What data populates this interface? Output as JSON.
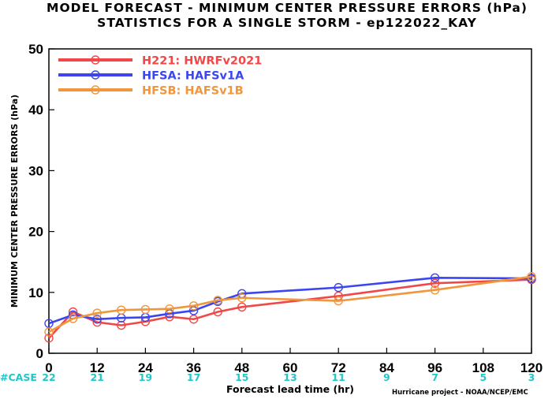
{
  "title_line1": "MODEL FORECAST - MINIMUM CENTER PRESSURE ERRORS (hPa)",
  "title_line2": "STATISTICS FOR A SINGLE STORM - ep122022_KAY",
  "credit": "Hurricane project - NOAA/NCEP/EMC",
  "case_label": "#CASE",
  "case_color": "#1ec8c8",
  "chart_data": {
    "type": "line",
    "title": "MODEL FORECAST - MINIMUM CENTER PRESSURE ERRORS (hPa)",
    "subtitle": "STATISTICS FOR A SINGLE STORM - ep122022_KAY",
    "xlabel": "Forecast lead time (hr)",
    "ylabel": "MINIMUM CENTER PRESSURE ERRORS (hPa)",
    "xlim": [
      0,
      120
    ],
    "ylim": [
      0,
      50
    ],
    "x_ticks": [
      0,
      12,
      24,
      36,
      48,
      60,
      72,
      84,
      96,
      108,
      120
    ],
    "y_ticks": [
      0,
      10,
      20,
      30,
      40,
      50
    ],
    "cases": [
      22,
      21,
      19,
      17,
      15,
      13,
      11,
      9,
      7,
      5,
      3
    ],
    "legend_position": "top-left",
    "grid": false,
    "series": [
      {
        "name": "H221: HWRFv2021",
        "color": "#f04848",
        "x": [
          0,
          6,
          12,
          18,
          24,
          30,
          36,
          42,
          48,
          72,
          96,
          120
        ],
        "y": [
          2.5,
          6.8,
          5.1,
          4.6,
          5.2,
          6.0,
          5.6,
          6.8,
          7.6,
          9.4,
          11.5,
          12.1
        ]
      },
      {
        "name": "HFSA: HAFSv1A",
        "color": "#3c46f0",
        "x": [
          0,
          6,
          12,
          18,
          24,
          30,
          36,
          42,
          48,
          72,
          96,
          120
        ],
        "y": [
          4.9,
          6.3,
          5.6,
          5.8,
          5.9,
          6.5,
          7.0,
          8.5,
          9.8,
          10.8,
          12.4,
          12.3
        ]
      },
      {
        "name": "HFSB: HAFSv1B",
        "color": "#f0963c",
        "x": [
          0,
          6,
          12,
          18,
          24,
          30,
          36,
          42,
          48,
          72,
          96,
          120
        ],
        "y": [
          3.5,
          5.7,
          6.6,
          7.1,
          7.2,
          7.3,
          7.8,
          8.7,
          9.1,
          8.6,
          10.4,
          12.6
        ]
      }
    ]
  }
}
